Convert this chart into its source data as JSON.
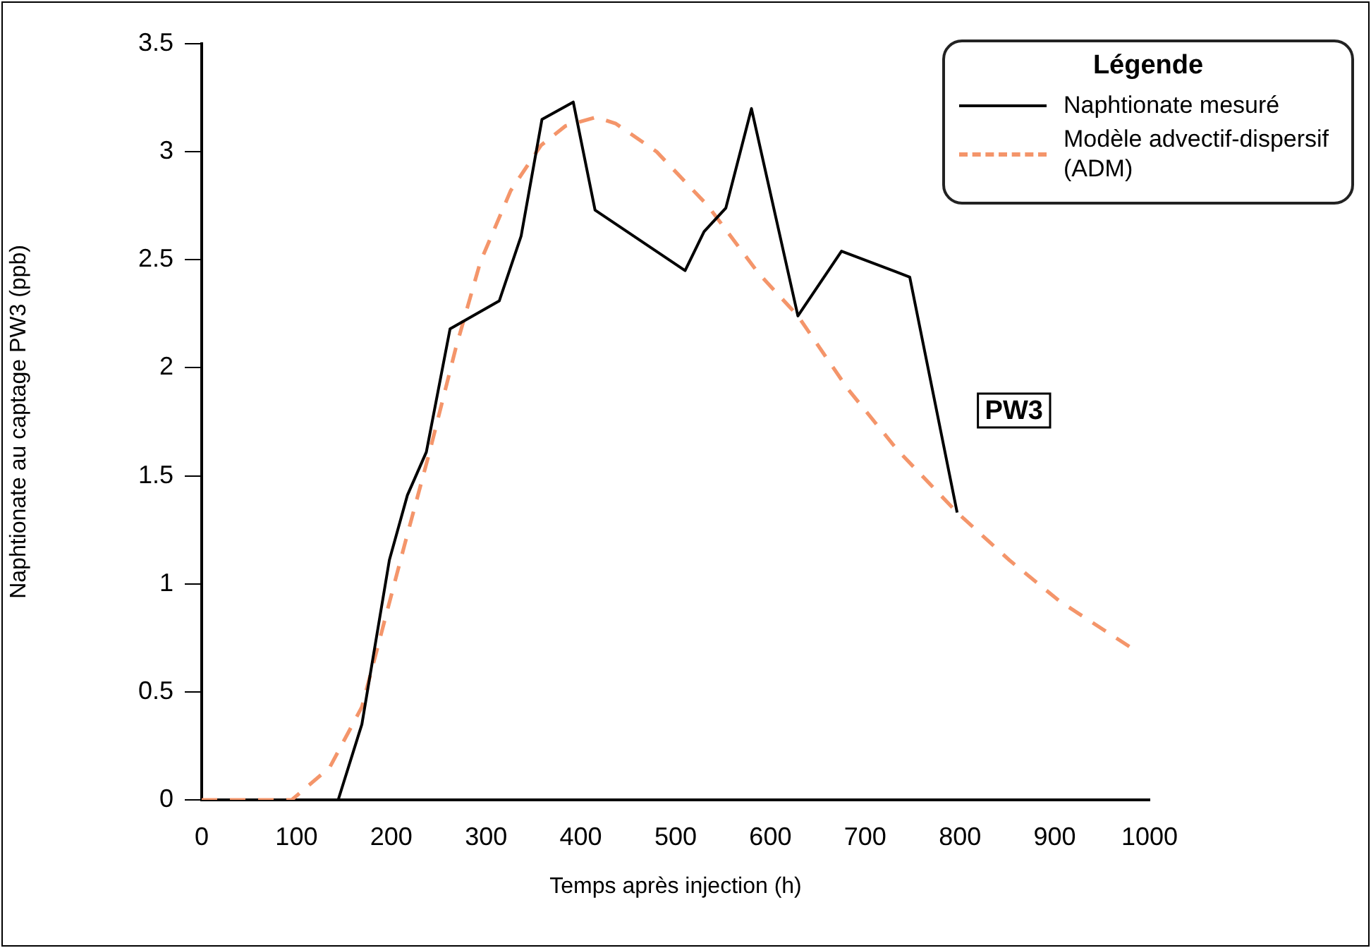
{
  "chart_data": {
    "type": "line",
    "xlabel": "Temps après injection (h)",
    "ylabel": "Naphtionate au captage PW3 (ppb)",
    "legend_title": "Légende",
    "legend": "top right",
    "marker": "none",
    "xlim": [
      0,
      1000
    ],
    "xticks": [
      0,
      100,
      200,
      300,
      400,
      500,
      600,
      700,
      800,
      900,
      1000
    ],
    "ylim": [
      0,
      3.5
    ],
    "yticks": [
      0,
      0.5,
      1,
      1.5,
      2,
      2.5,
      3,
      3.5
    ],
    "annotations": [
      "PW3"
    ],
    "series": [
      {
        "name": "Naphtionate mesuré",
        "color": "#000000",
        "line_style": "solid",
        "x": [
          144,
          169,
          198,
          217,
          237,
          262,
          314,
          337,
          359,
          392,
          415,
          510,
          530,
          553,
          580,
          629,
          675,
          747,
          797
        ],
        "values": [
          0,
          0.35,
          1.11,
          1.41,
          1.61,
          2.18,
          2.31,
          2.61,
          3.15,
          3.23,
          2.73,
          2.45,
          2.63,
          2.74,
          3.2,
          2.24,
          2.54,
          2.42,
          1.33
        ]
      },
      {
        "name": "Modèle advectif-dispersif (ADM)",
        "color": "#f4956a",
        "line_style": "dashed",
        "x": [
          0,
          95,
          135,
          169,
          193,
          214,
          241,
          268,
          294,
          326,
          358,
          384,
          416,
          437,
          480,
          534,
          587,
          629,
          682,
          734,
          797,
          852,
          905,
          982
        ],
        "values": [
          0,
          0,
          0.15,
          0.43,
          0.83,
          1.18,
          1.62,
          2.09,
          2.49,
          2.82,
          3.03,
          3.12,
          3.16,
          3.13,
          3.0,
          2.75,
          2.44,
          2.24,
          1.9,
          1.62,
          1.33,
          1.11,
          0.92,
          0.7
        ]
      }
    ]
  }
}
